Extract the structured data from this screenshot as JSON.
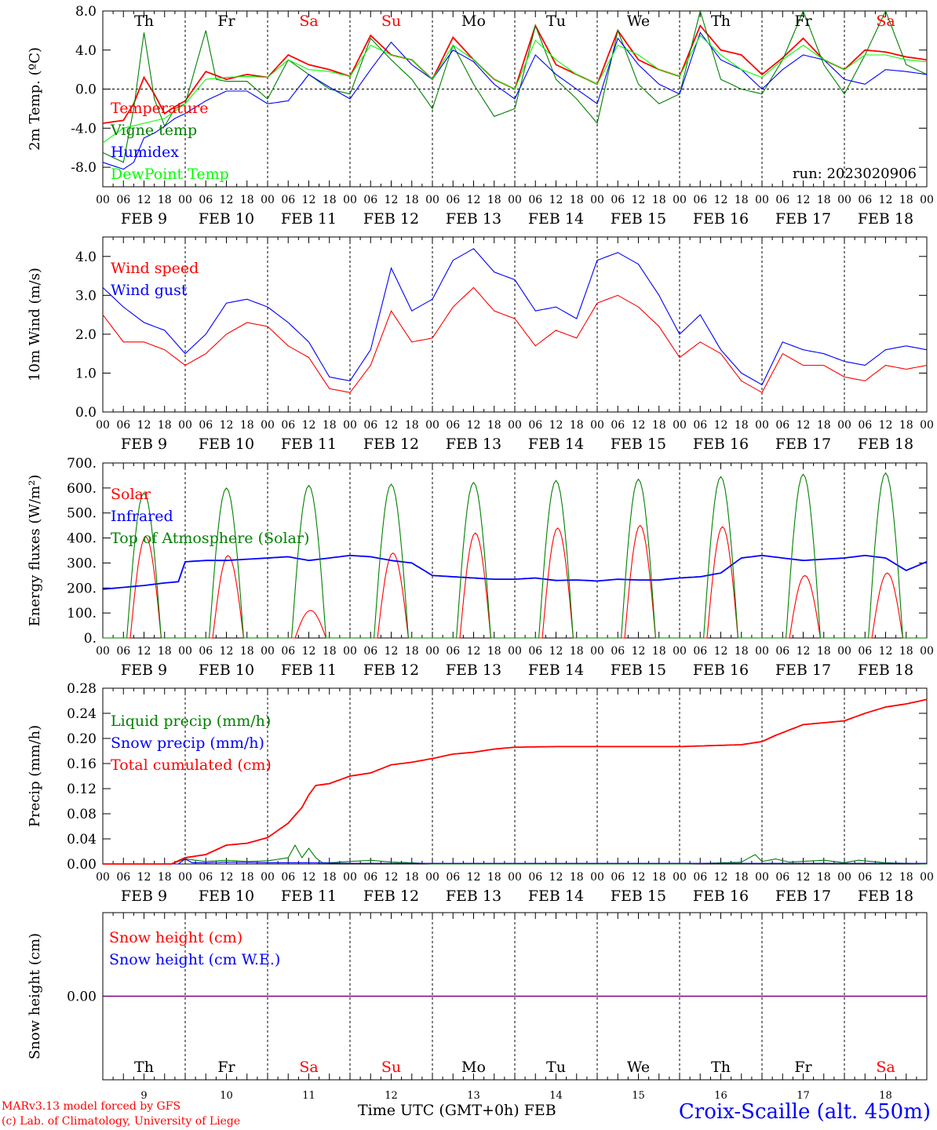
{
  "days": [
    {
      "dow": "Th",
      "dow_color": "#000000",
      "date": "FEB  9",
      "num": "9"
    },
    {
      "dow": "Fr",
      "dow_color": "#000000",
      "date": "FEB 10",
      "num": "10"
    },
    {
      "dow": "Sa",
      "dow_color": "#ff0000",
      "date": "FEB 11",
      "num": "11"
    },
    {
      "dow": "Su",
      "dow_color": "#ff0000",
      "date": "FEB 12",
      "num": "12"
    },
    {
      "dow": "Mo",
      "dow_color": "#000000",
      "date": "FEB 13",
      "num": "13"
    },
    {
      "dow": "Tu",
      "dow_color": "#000000",
      "date": "FEB 14",
      "num": "14"
    },
    {
      "dow": "We",
      "dow_color": "#000000",
      "date": "FEB 15",
      "num": "15"
    },
    {
      "dow": "Th",
      "dow_color": "#000000",
      "date": "FEB 16",
      "num": "16"
    },
    {
      "dow": "Fr",
      "dow_color": "#000000",
      "date": "FEB 17",
      "num": "17"
    },
    {
      "dow": "Sa",
      "dow_color": "#ff0000",
      "date": "FEB 18",
      "num": "18"
    }
  ],
  "hour_ticks": [
    "00",
    "06",
    "12",
    "18"
  ],
  "footer": {
    "credit_line1": "MARv3.13 model forced by GFS",
    "credit_line2": "(c) Lab. of Climatology, University of Liege",
    "time_axis": "Time UTC (GMT+0h) FEB",
    "station": "Croix-Scaille (alt. 450m)"
  },
  "chart_data": [
    {
      "id": "temp",
      "type": "line",
      "ylabel": "2m Temp. (ºC)",
      "ylim": [
        -10,
        8
      ],
      "yticks": [
        "8.0",
        "4.0",
        "0.0",
        "-4.0",
        "-8.0"
      ],
      "ytick_values": [
        8,
        4,
        0,
        -4,
        -8
      ],
      "zero_line": true,
      "run": "run: 2023020906",
      "x_unit": "hours since FEB 9 00 UTC",
      "series": [
        {
          "name": "Temperature",
          "color": "#ff0000",
          "x": [
            0,
            6,
            9,
            12,
            15,
            18,
            21,
            24,
            30,
            36,
            42,
            48,
            54,
            60,
            66,
            72,
            78,
            84,
            90,
            96,
            102,
            108,
            114,
            120,
            126,
            132,
            138,
            144,
            150,
            156,
            162,
            168,
            174,
            180,
            186,
            192,
            198,
            204,
            210,
            216,
            222,
            228,
            234,
            240
          ],
          "y": [
            -3.5,
            -3.2,
            -1.5,
            1.2,
            -0.5,
            -2.5,
            -1.8,
            -1.2,
            1.8,
            1.0,
            1.5,
            1.2,
            3.5,
            2.5,
            2.0,
            1.3,
            5.5,
            3.5,
            3.0,
            1.0,
            5.3,
            3.0,
            1.0,
            0.0,
            6.5,
            2.5,
            1.5,
            0.5,
            6.0,
            3.0,
            2.0,
            1.3,
            6.5,
            4.0,
            3.5,
            1.5,
            3.2,
            5.2,
            3.0,
            2.0,
            4.0,
            3.8,
            3.3,
            3.0
          ]
        },
        {
          "name": "Vigne temp",
          "color": "#008000",
          "x": [
            0,
            6,
            9,
            12,
            15,
            18,
            21,
            24,
            30,
            33,
            36,
            42,
            48,
            54,
            60,
            66,
            72,
            78,
            84,
            90,
            96,
            102,
            108,
            114,
            120,
            126,
            132,
            138,
            144,
            150,
            156,
            162,
            168,
            174,
            180,
            186,
            192,
            198,
            204,
            210,
            216,
            222,
            228,
            234,
            240
          ],
          "y": [
            -6.5,
            -7.5,
            -2.0,
            5.8,
            -1.0,
            -3.8,
            -2.0,
            -1.5,
            6.0,
            1.0,
            0.8,
            0.8,
            -1.0,
            3.0,
            1.5,
            0.0,
            -0.5,
            5.2,
            3.0,
            1.0,
            -2.0,
            4.5,
            0.5,
            -2.8,
            -2.0,
            6.5,
            1.0,
            -1.0,
            -3.5,
            6.0,
            0.5,
            -1.5,
            -0.5,
            8.0,
            1.0,
            0.0,
            -0.5,
            3.0,
            8.0,
            2.5,
            -0.5,
            3.5,
            8.0,
            2.5,
            1.5
          ]
        },
        {
          "name": "Humidex",
          "color": "#0000ff",
          "x": [
            0,
            6,
            9,
            12,
            15,
            18,
            21,
            24,
            30,
            36,
            42,
            48,
            54,
            60,
            66,
            72,
            78,
            84,
            90,
            96,
            102,
            108,
            114,
            120,
            126,
            132,
            138,
            144,
            150,
            156,
            162,
            168,
            174,
            180,
            186,
            192,
            198,
            204,
            210,
            216,
            222,
            228,
            234,
            240
          ],
          "y": [
            -7.5,
            -8.2,
            -7.5,
            -5.0,
            -4.5,
            -3.8,
            -3.0,
            -2.5,
            -1.2,
            -0.2,
            -0.2,
            -1.5,
            -1.2,
            1.5,
            0.2,
            -1.0,
            2.0,
            4.8,
            2.5,
            1.0,
            4.0,
            2.8,
            0.5,
            -1.0,
            3.5,
            1.5,
            0.0,
            -1.5,
            5.2,
            2.5,
            0.5,
            -0.5,
            5.8,
            3.0,
            2.0,
            0.0,
            2.0,
            3.5,
            3.0,
            1.0,
            0.5,
            2.0,
            1.8,
            1.5
          ]
        },
        {
          "name": "DewPoint Temp",
          "color": "#00ff00",
          "x": [
            0,
            6,
            12,
            18,
            24,
            30,
            36,
            42,
            48,
            54,
            60,
            66,
            72,
            78,
            84,
            90,
            96,
            102,
            108,
            114,
            120,
            126,
            132,
            138,
            144,
            150,
            156,
            162,
            168,
            174,
            180,
            186,
            192,
            198,
            204,
            210,
            216,
            222,
            228,
            234,
            240
          ],
          "y": [
            -5.5,
            -4.0,
            -3.5,
            -3.0,
            -1.5,
            1.0,
            1.2,
            1.3,
            1.2,
            3.0,
            2.0,
            1.8,
            1.3,
            4.5,
            3.5,
            3.0,
            1.0,
            4.5,
            3.0,
            1.0,
            0.0,
            5.0,
            3.0,
            1.5,
            0.5,
            4.5,
            3.5,
            2.0,
            1.3,
            5.5,
            3.5,
            2.0,
            1.2,
            3.0,
            4.5,
            3.0,
            2.0,
            3.5,
            3.5,
            3.0,
            2.8
          ]
        }
      ]
    },
    {
      "id": "wind",
      "type": "line",
      "ylabel": "10m Wind (m/s)",
      "ylim": [
        0,
        4.5
      ],
      "yticks": [
        "4.0",
        "3.0",
        "2.0",
        "1.0",
        "0.0"
      ],
      "ytick_values": [
        4,
        3,
        2,
        1,
        0
      ],
      "x_unit": "hours since FEB 9 00 UTC",
      "series": [
        {
          "name": "Wind speed",
          "color": "#ff0000",
          "x": [
            0,
            6,
            12,
            18,
            24,
            30,
            36,
            42,
            48,
            54,
            60,
            66,
            72,
            78,
            84,
            90,
            96,
            102,
            108,
            114,
            120,
            126,
            132,
            138,
            144,
            150,
            156,
            162,
            168,
            174,
            180,
            186,
            192,
            198,
            204,
            210,
            216,
            222,
            228,
            234,
            240
          ],
          "y": [
            2.5,
            1.8,
            1.8,
            1.6,
            1.2,
            1.5,
            2.0,
            2.3,
            2.2,
            1.7,
            1.4,
            0.6,
            0.5,
            1.2,
            2.6,
            1.8,
            1.9,
            2.7,
            3.2,
            2.6,
            2.4,
            1.7,
            2.1,
            1.9,
            2.8,
            3.0,
            2.7,
            2.2,
            1.4,
            1.8,
            1.5,
            0.8,
            0.5,
            1.5,
            1.2,
            1.2,
            0.9,
            0.8,
            1.2,
            1.1,
            1.2
          ]
        },
        {
          "name": "Wind gust",
          "color": "#0000ff",
          "x": [
            0,
            6,
            12,
            18,
            24,
            30,
            36,
            42,
            48,
            54,
            60,
            66,
            72,
            78,
            84,
            90,
            96,
            102,
            108,
            114,
            120,
            126,
            132,
            138,
            144,
            150,
            156,
            162,
            168,
            174,
            180,
            186,
            192,
            198,
            204,
            210,
            216,
            222,
            228,
            234,
            240
          ],
          "y": [
            3.2,
            2.7,
            2.3,
            2.1,
            1.5,
            2.0,
            2.8,
            2.9,
            2.7,
            2.3,
            1.8,
            0.9,
            0.8,
            1.6,
            3.7,
            2.6,
            2.9,
            3.9,
            4.2,
            3.6,
            3.4,
            2.6,
            2.7,
            2.4,
            3.9,
            4.1,
            3.8,
            3.0,
            2.0,
            2.5,
            1.6,
            1.0,
            0.7,
            1.8,
            1.6,
            1.5,
            1.3,
            1.2,
            1.6,
            1.7,
            1.6
          ]
        }
      ]
    },
    {
      "id": "energy",
      "type": "line",
      "ylabel": "Energy fluxes (W/m²)",
      "ylim": [
        0,
        700
      ],
      "yticks": [
        "700.",
        "600.",
        "500.",
        "400.",
        "300.",
        "200.",
        "100.",
        "0."
      ],
      "ytick_values": [
        700,
        600,
        500,
        400,
        300,
        200,
        100,
        0
      ],
      "x_unit": "hours since FEB 9 00 UTC",
      "series": [
        {
          "name": "Solar",
          "color": "#ff0000",
          "kind": "daily_peak",
          "peak_hour": 12.5,
          "half_width_hours": 4.5,
          "daily_peaks": [
            405,
            330,
            110,
            340,
            420,
            440,
            450,
            445,
            250,
            260
          ]
        },
        {
          "name": "Infrared",
          "color": "#0000ff",
          "x": [
            0,
            12,
            18,
            22,
            24,
            30,
            36,
            42,
            48,
            54,
            60,
            66,
            72,
            78,
            84,
            90,
            96,
            102,
            108,
            114,
            120,
            126,
            132,
            138,
            144,
            150,
            156,
            162,
            168,
            174,
            180,
            186,
            192,
            198,
            204,
            210,
            216,
            222,
            228,
            234,
            240
          ],
          "y": [
            195,
            210,
            220,
            225,
            305,
            310,
            310,
            315,
            320,
            325,
            310,
            320,
            330,
            325,
            310,
            300,
            250,
            245,
            240,
            235,
            235,
            240,
            230,
            232,
            228,
            235,
            232,
            232,
            240,
            245,
            260,
            320,
            330,
            320,
            310,
            315,
            320,
            330,
            320,
            270,
            305
          ]
        },
        {
          "name": "Top of Atmosphere (Solar)",
          "color": "#008000",
          "kind": "daily_peak",
          "peak_hour": 12,
          "half_width_hours": 5,
          "daily_peaks": [
            580,
            600,
            610,
            615,
            622,
            630,
            635,
            645,
            655,
            660
          ]
        }
      ]
    },
    {
      "id": "precip",
      "type": "line",
      "ylabel": "Precip (mm/h)",
      "ylim": [
        0,
        0.28
      ],
      "yticks": [
        "0.28",
        "0.24",
        "0.20",
        "0.16",
        "0.12",
        "0.08",
        "0.04",
        "0.00"
      ],
      "ytick_values": [
        0.28,
        0.24,
        0.2,
        0.16,
        0.12,
        0.08,
        0.04,
        0
      ],
      "x_unit": "hours since FEB 9 00 UTC",
      "series": [
        {
          "name": "Liquid precip (mm/h)",
          "color": "#008000",
          "x": [
            0,
            20,
            24,
            30,
            36,
            42,
            48,
            54,
            56,
            58,
            60,
            62,
            64,
            66,
            72,
            78,
            84,
            90,
            96,
            120,
            170,
            186,
            190,
            192,
            196,
            200,
            210,
            216,
            220,
            228,
            240
          ],
          "y": [
            0,
            0,
            0.008,
            0.004,
            0.006,
            0.004,
            0.005,
            0.01,
            0.03,
            0.01,
            0.025,
            0.01,
            0.002,
            0.002,
            0.004,
            0.006,
            0.003,
            0.002,
            0,
            0,
            0,
            0.003,
            0.015,
            0.004,
            0.008,
            0.003,
            0.006,
            0.002,
            0.006,
            0.002,
            0
          ]
        },
        {
          "name": "Snow precip (mm/h)",
          "color": "#0000ff",
          "x": [
            0,
            22,
            24,
            26,
            30,
            36,
            48,
            60,
            72,
            96,
            240
          ],
          "y": [
            0,
            0,
            0.008,
            0.002,
            0.002,
            0.003,
            0.002,
            0.002,
            0.001,
            0.001,
            0.001
          ]
        },
        {
          "name": "Total cumulated (cm)",
          "color": "#ff0000",
          "x": [
            0,
            20,
            24,
            30,
            36,
            42,
            48,
            54,
            58,
            60,
            62,
            66,
            72,
            78,
            84,
            90,
            96,
            102,
            108,
            114,
            120,
            132,
            144,
            156,
            168,
            180,
            186,
            192,
            196,
            204,
            210,
            216,
            222,
            228,
            234,
            240
          ],
          "y": [
            0,
            0,
            0.01,
            0.015,
            0.03,
            0.033,
            0.042,
            0.065,
            0.09,
            0.11,
            0.125,
            0.128,
            0.14,
            0.145,
            0.158,
            0.162,
            0.168,
            0.175,
            0.178,
            0.183,
            0.186,
            0.187,
            0.187,
            0.187,
            0.187,
            0.189,
            0.19,
            0.195,
            0.205,
            0.222,
            0.225,
            0.228,
            0.24,
            0.25,
            0.255,
            0.262
          ]
        }
      ]
    },
    {
      "id": "snow",
      "type": "line",
      "ylabel": "Snow height (cm)",
      "yticks": [
        "0.00"
      ],
      "ytick_values": [
        0
      ],
      "ylim": [
        -1,
        1
      ],
      "x_unit": "hours since FEB 9 00 UTC",
      "series": [
        {
          "name": "Snow height (cm)",
          "color": "#ff0000",
          "x": [
            0,
            240
          ],
          "y": [
            0,
            0
          ]
        },
        {
          "name": "Snow height (cm W.E.)",
          "color": "#0000ff",
          "x": [
            0,
            240
          ],
          "y": [
            0,
            0
          ]
        }
      ]
    }
  ]
}
